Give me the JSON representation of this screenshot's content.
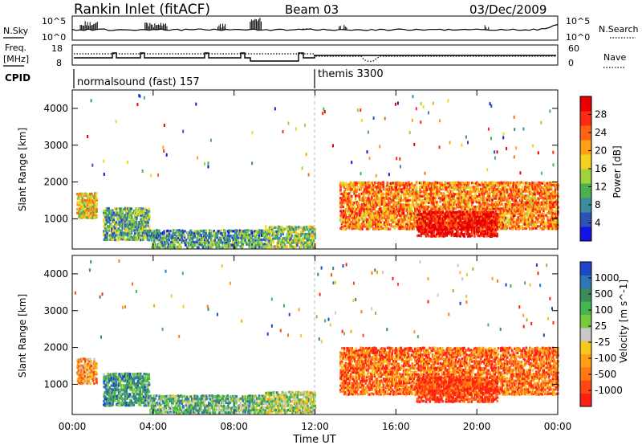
{
  "header": {
    "title": "Rankin Inlet (fitACF)",
    "beam": "Beam 03",
    "date": "03/Dec/2009"
  },
  "noise_panel": {
    "left_label": "N.Sky",
    "right_label": "N.Search",
    "left_ticks": [
      "10^5",
      "10^0"
    ],
    "right_ticks": [
      "10^5",
      "10^0"
    ]
  },
  "freq_panel": {
    "left_label_1": "Freq.",
    "left_label_2": "[MHz]",
    "right_label": "Nave",
    "left_ticks": [
      "18",
      "8"
    ],
    "right_ticks": [
      "60",
      "0"
    ]
  },
  "cpid_panel": {
    "label": "CPID",
    "modes": [
      {
        "name": "normalsound (fast) 157",
        "start": "00:00",
        "end": "12:00"
      },
      {
        "name": "themis 3300",
        "start": "12:00",
        "end": "24:00"
      }
    ]
  },
  "x_axis": {
    "label": "Time UT",
    "ticks": [
      "00:00",
      "04:00",
      "08:00",
      "12:00",
      "16:00",
      "20:00",
      "00:00"
    ]
  },
  "chart_data": [
    {
      "type": "heatmap",
      "name": "power",
      "ylabel": "Slant Range [km]",
      "yticks": [
        1000,
        2000,
        3000,
        4000
      ],
      "ylim": [
        180,
        4500
      ],
      "xlim_hours": [
        0,
        24
      ],
      "colorbar_label": "Power [dB]",
      "colorbar_ticks": [
        "4",
        "8",
        "12",
        "16",
        "20",
        "24",
        "28"
      ],
      "colorbar_colors": [
        "#1414e6",
        "#2d52b4",
        "#3c8ca0",
        "#4caf50",
        "#a0d23c",
        "#f5d21e",
        "#ffa014",
        "#ff6414",
        "#ff2814",
        "#e60000"
      ],
      "regions": [
        {
          "t": [
            0.2,
            1.2
          ],
          "r": [
            1000,
            1700
          ],
          "level": 0.55
        },
        {
          "t": [
            1.5,
            3.8
          ],
          "r": [
            400,
            1300
          ],
          "level": 0.35
        },
        {
          "t": [
            3.8,
            9.5
          ],
          "r": [
            200,
            700
          ],
          "level": 0.3
        },
        {
          "t": [
            9.5,
            12.0
          ],
          "r": [
            200,
            800
          ],
          "level": 0.4
        },
        {
          "t": [
            13.2,
            24.0
          ],
          "r": [
            700,
            2000
          ],
          "level": 0.7
        },
        {
          "t": [
            17.0,
            21.0
          ],
          "r": [
            500,
            1200
          ],
          "level": 0.95
        }
      ]
    },
    {
      "type": "heatmap",
      "name": "velocity",
      "ylabel": "Slant Range [km]",
      "yticks": [
        1000,
        2000,
        3000,
        4000
      ],
      "ylim": [
        180,
        4500
      ],
      "xlim_hours": [
        0,
        24
      ],
      "colorbar_label": "Velocity [m s^-1]",
      "colorbar_ticks": [
        "1000",
        "500",
        "100",
        "25",
        "-25",
        "-100",
        "-500",
        "-1000"
      ],
      "colorbar_colors": [
        "#1e46c8",
        "#2d78b4",
        "#3c8c5a",
        "#46b450",
        "#78c83c",
        "#c8c8c8",
        "#f5c81e",
        "#ffa014",
        "#ff7814",
        "#ff4614",
        "#ff1e14"
      ],
      "regions": [
        {
          "t": [
            0.2,
            1.2
          ],
          "r": [
            1000,
            1700
          ],
          "level": 0.7
        },
        {
          "t": [
            1.5,
            3.8
          ],
          "r": [
            400,
            1300
          ],
          "level": 0.25
        },
        {
          "t": [
            3.8,
            9.5
          ],
          "r": [
            200,
            700
          ],
          "level": 0.35
        },
        {
          "t": [
            9.5,
            12.0
          ],
          "r": [
            200,
            800
          ],
          "level": 0.45
        },
        {
          "t": [
            13.2,
            24.0
          ],
          "r": [
            700,
            2000
          ],
          "level": 0.8
        },
        {
          "t": [
            17.0,
            21.0
          ],
          "r": [
            500,
            1200
          ],
          "level": 0.9
        }
      ]
    }
  ]
}
